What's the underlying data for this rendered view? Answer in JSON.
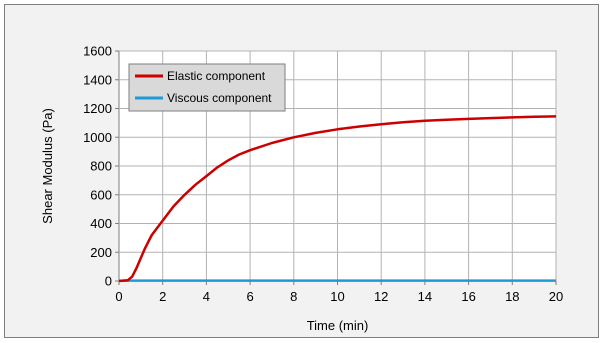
{
  "chart_data": {
    "type": "line",
    "title": "",
    "xlabel": "Time (min)",
    "ylabel": "Shear Modulus (Pa)",
    "xlim": [
      0,
      20
    ],
    "ylim": [
      0,
      1600
    ],
    "xticks": [
      0,
      2,
      4,
      6,
      8,
      10,
      12,
      14,
      16,
      18,
      20
    ],
    "yticks": [
      0,
      200,
      400,
      600,
      800,
      1000,
      1200,
      1400,
      1600
    ],
    "grid": true,
    "legend_position": "top-left",
    "series": [
      {
        "name": "Elastic component",
        "color": "#cc0000",
        "x": [
          0,
          0.4,
          0.6,
          0.8,
          1.0,
          1.2,
          1.5,
          2.0,
          2.5,
          3.0,
          3.5,
          4.0,
          4.5,
          5.0,
          5.5,
          6.0,
          7.0,
          8.0,
          9.0,
          10.0,
          11.0,
          12.0,
          13.0,
          14.0,
          15.0,
          16.0,
          17.0,
          18.0,
          19.0,
          20.0
        ],
        "y": [
          0,
          5,
          30,
          90,
          160,
          230,
          320,
          420,
          520,
          600,
          670,
          730,
          790,
          840,
          880,
          910,
          960,
          1000,
          1030,
          1055,
          1075,
          1090,
          1105,
          1115,
          1122,
          1128,
          1133,
          1138,
          1142,
          1145
        ]
      },
      {
        "name": "Viscous component",
        "color": "#1f9ad6",
        "x": [
          0,
          2,
          4,
          6,
          8,
          10,
          12,
          14,
          16,
          18,
          20
        ],
        "y": [
          2,
          3,
          3,
          3,
          3,
          3,
          3,
          3,
          3,
          3,
          3
        ]
      }
    ]
  }
}
